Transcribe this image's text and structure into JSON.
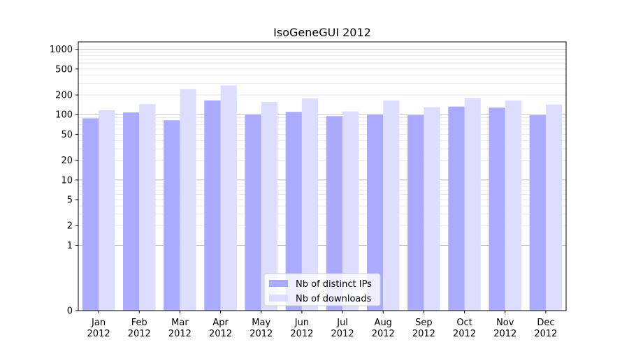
{
  "chart_data": {
    "type": "bar",
    "title": "IsoGeneGUI 2012",
    "xlabel": "",
    "ylabel": "",
    "y_scale": "symlog",
    "y_ticks": [
      0,
      1,
      2,
      5,
      10,
      20,
      50,
      100,
      200,
      500,
      1000
    ],
    "y_tick_labels": [
      "0",
      "1",
      "2",
      "5",
      "10",
      "20",
      "50",
      "100",
      "200",
      "500",
      "1000"
    ],
    "ylim": [
      0,
      1300
    ],
    "grid": true,
    "legend_position": "bottom-center",
    "categories": [
      "Jan\n2012",
      "Feb\n2012",
      "Mar\n2012",
      "Apr\n2012",
      "May\n2012",
      "Jun\n2012",
      "Jul\n2012",
      "Aug\n2012",
      "Sep\n2012",
      "Oct\n2012",
      "Nov\n2012",
      "Dec\n2012"
    ],
    "series": [
      {
        "name": "Nb of distinct IPs",
        "color": "#aaaaff",
        "values": [
          88,
          108,
          82,
          165,
          100,
          110,
          95,
          100,
          98,
          133,
          128,
          98
        ]
      },
      {
        "name": "Nb of downloads",
        "color": "#ddddff",
        "values": [
          117,
          145,
          246,
          280,
          157,
          177,
          112,
          165,
          130,
          180,
          165,
          143
        ]
      }
    ]
  }
}
